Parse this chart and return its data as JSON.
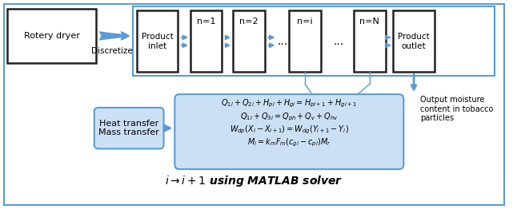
{
  "fig_width": 6.41,
  "fig_height": 2.62,
  "dpi": 100,
  "bg_color": "#ffffff",
  "outer_border_color": "#5b9bd5",
  "outer_border_lw": 1.5,
  "rotery_dryer_text": "Rotery dryer",
  "discretize_text": "Discretize",
  "product_inlet_text": "Product\ninlet",
  "n1_label": "n=1",
  "n2_label": "n=2",
  "ni_label": "n=i",
  "nN_label": "n=N",
  "product_outlet_text": "Product\noutlet",
  "output_text": "Output moisture\ncontent in tobacco\nparticles",
  "heat_transfer_text": "Heat transfer\nMass transfer",
  "eq1": "$Q_{1i} + Q_{2i} + H_{pi} + H_{gi} = H_{pi+1} + H_{gi+1}$",
  "eq2": "$Q_{1i} + Q_{3i} = Q_{ph} + Q_v + Q_{hv}$",
  "eq3": "$W_{dp}(X_i - X_{i+1}) = W_{dg}(Y_{i+1} - Y_i)$",
  "eq4": "$M_i = k_m F_m(c_{gi} - c_{pi})M_r$",
  "solver_text": "$i \\rightarrow i + 1$ using MATLAB solver",
  "arrow_color": "#5b9bd5",
  "box_fill_light": "#cce0f5",
  "dark_edge": "#222222"
}
